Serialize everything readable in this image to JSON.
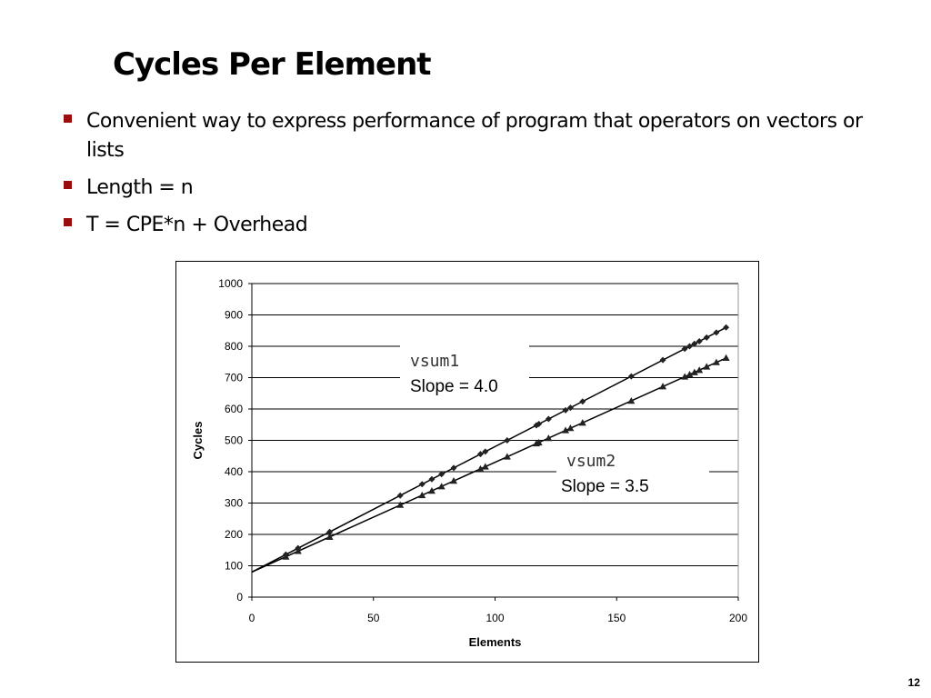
{
  "slide": {
    "title": "Cycles Per Element",
    "page_number": "12",
    "bullet_color": "#9b0d0d",
    "bullets": [
      "Convenient way to express performance of program that operators on vectors or lists",
      "Length = n",
      "T = CPE*n + Overhead"
    ]
  },
  "chart_data": {
    "type": "scatter",
    "xlabel": "Elements",
    "ylabel": "Cycles",
    "xlim": [
      0,
      200
    ],
    "ylim": [
      0,
      1000
    ],
    "x_ticks": [
      0,
      50,
      100,
      150,
      200
    ],
    "y_ticks": [
      0,
      100,
      200,
      300,
      400,
      500,
      600,
      700,
      800,
      900,
      1000
    ],
    "grid": "horizontal",
    "series": [
      {
        "marker": "diamond",
        "color": "#222222",
        "x": [
          14,
          19,
          32,
          61,
          70,
          74,
          78,
          83,
          94,
          96,
          105,
          117,
          118,
          122,
          129,
          131,
          136,
          156,
          169,
          178,
          180,
          182,
          184,
          187,
          191,
          195
        ],
        "y": [
          136,
          156,
          208,
          324,
          360,
          376,
          392,
          412,
          456,
          464,
          500,
          548,
          552,
          568,
          596,
          604,
          624,
          704,
          756,
          792,
          800,
          808,
          816,
          828,
          844,
          860
        ],
        "fit": {
          "slope": 4.0,
          "intercept": 80
        }
      },
      {
        "marker": "triangle",
        "color": "#222222",
        "x": [
          14,
          19,
          32,
          61,
          70,
          74,
          78,
          83,
          94,
          96,
          105,
          117,
          118,
          122,
          129,
          131,
          136,
          156,
          169,
          178,
          180,
          182,
          184,
          187,
          191,
          195
        ],
        "y": [
          129,
          147,
          192,
          294,
          325,
          339,
          353,
          371,
          409,
          416,
          448,
          490,
          493,
          507,
          532,
          539,
          556,
          626,
          672,
          703,
          710,
          717,
          724,
          735,
          749,
          763
        ],
        "fit": {
          "slope": 3.5,
          "intercept": 80
        }
      }
    ],
    "annotations": [
      {
        "name": "vsum1",
        "text": "Slope = 4.0"
      },
      {
        "name": "vsum2",
        "text": "Slope = 3.5"
      }
    ]
  }
}
